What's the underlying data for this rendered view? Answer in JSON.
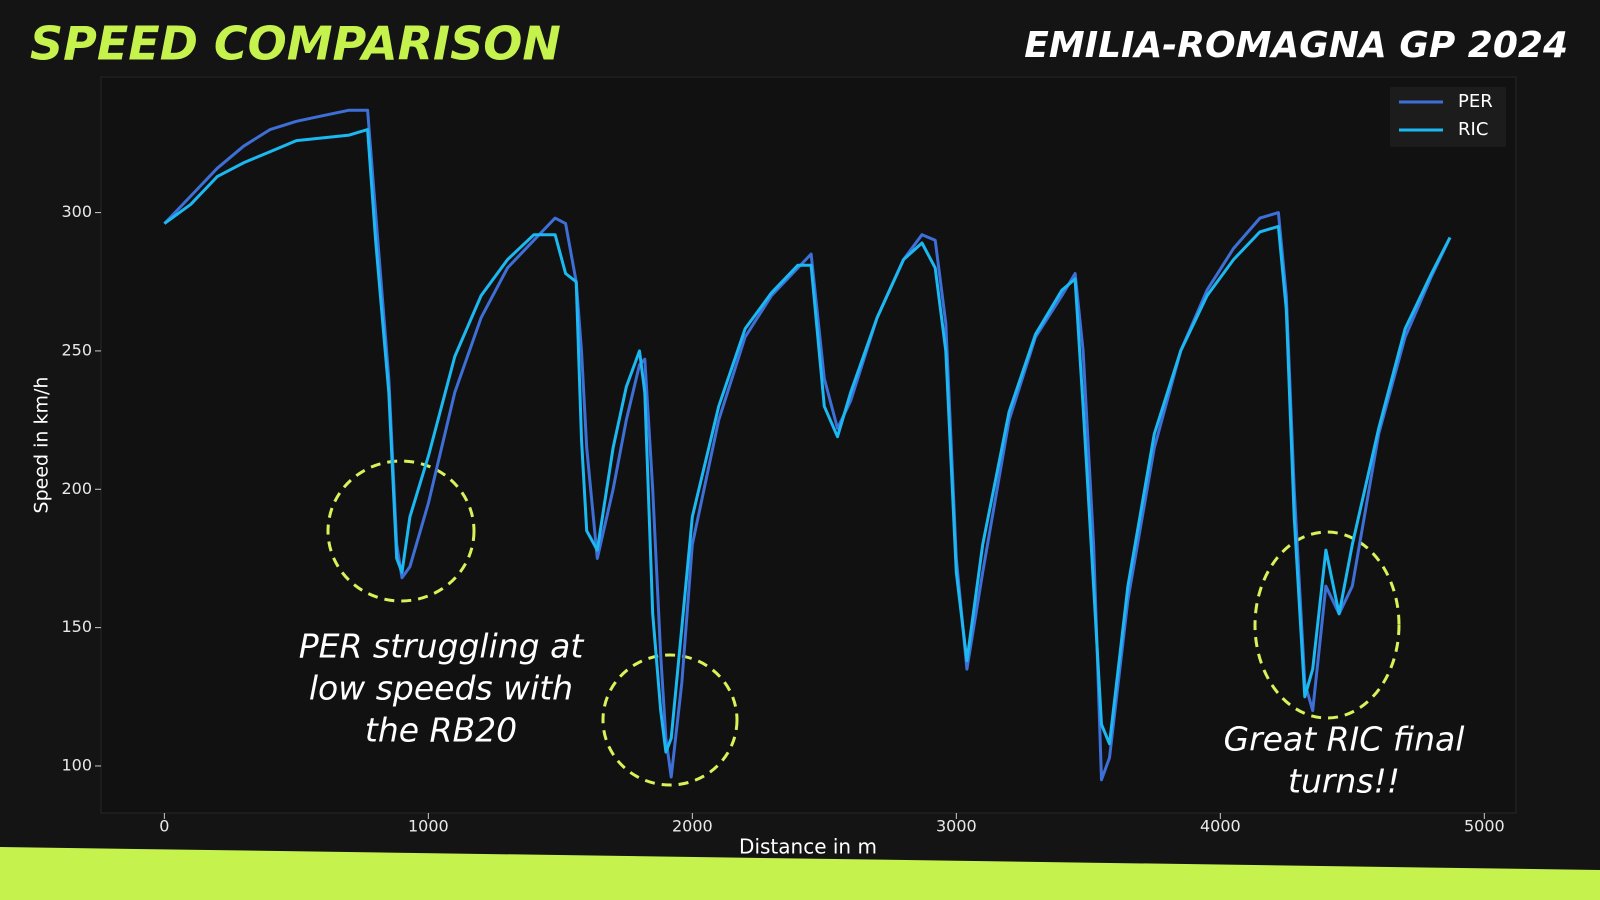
{
  "chart_data": {
    "type": "line",
    "title": "SPEED COMPARISON",
    "subtitle": "EMILIA-ROMAGNA GP 2024",
    "x_label": "Distance in m",
    "y_label": "Speed in km/h",
    "xlim": [
      -240,
      5120
    ],
    "ylim": [
      83,
      349
    ],
    "xticks": [
      0,
      1000,
      2000,
      3000,
      4000,
      5000
    ],
    "yticks": [
      100,
      150,
      200,
      250,
      300
    ],
    "legend": "upper right",
    "x": [
      0,
      100,
      200,
      300,
      400,
      500,
      600,
      700,
      770,
      800,
      850,
      880,
      900,
      930,
      1000,
      1100,
      1200,
      1300,
      1400,
      1450,
      1480,
      1520,
      1560,
      1580,
      1600,
      1640,
      1700,
      1750,
      1800,
      1820,
      1850,
      1880,
      1900,
      1920,
      1960,
      2000,
      2100,
      2200,
      2300,
      2400,
      2450,
      2500,
      2550,
      2600,
      2700,
      2800,
      2870,
      2920,
      2960,
      3000,
      3040,
      3100,
      3200,
      3300,
      3400,
      3450,
      3480,
      3520,
      3550,
      3580,
      3650,
      3750,
      3850,
      3950,
      4050,
      4150,
      4220,
      4250,
      4280,
      4320,
      4350,
      4400,
      4450,
      4500,
      4600,
      4700,
      4800,
      4870
    ],
    "series": [
      {
        "name": "PER",
        "color": "#3d6fd6",
        "values": [
          296,
          306,
          316,
          324,
          330,
          333,
          335,
          337,
          337,
          300,
          240,
          180,
          168,
          172,
          195,
          235,
          262,
          280,
          290,
          295,
          298,
          296,
          275,
          250,
          215,
          175,
          200,
          225,
          245,
          247,
          200,
          140,
          110,
          96,
          130,
          180,
          225,
          255,
          270,
          280,
          285,
          240,
          222,
          232,
          262,
          283,
          292,
          290,
          260,
          175,
          135,
          170,
          225,
          255,
          270,
          278,
          250,
          180,
          95,
          103,
          160,
          215,
          250,
          272,
          287,
          298,
          300,
          270,
          200,
          130,
          120,
          165,
          155,
          165,
          220,
          255,
          277,
          291
        ]
      },
      {
        "name": "RIC",
        "color": "#1cb8f2",
        "values": [
          296,
          303,
          313,
          318,
          322,
          326,
          327,
          328,
          330,
          290,
          235,
          175,
          170,
          190,
          212,
          248,
          270,
          283,
          292,
          292,
          292,
          278,
          275,
          218,
          185,
          178,
          215,
          237,
          250,
          235,
          155,
          120,
          105,
          110,
          150,
          190,
          230,
          258,
          271,
          281,
          281,
          230,
          219,
          235,
          262,
          283,
          289,
          280,
          250,
          170,
          138,
          180,
          228,
          256,
          272,
          276,
          230,
          165,
          115,
          108,
          165,
          220,
          250,
          270,
          283,
          293,
          295,
          265,
          190,
          125,
          135,
          178,
          155,
          180,
          222,
          258,
          278,
          291
        ]
      }
    ],
    "annotations": [
      {
        "lines": [
          "PER struggling at",
          "low speeds with",
          "the RB20"
        ]
      },
      {
        "lines": [
          "Great RIC final",
          "turns!!"
        ]
      }
    ]
  }
}
